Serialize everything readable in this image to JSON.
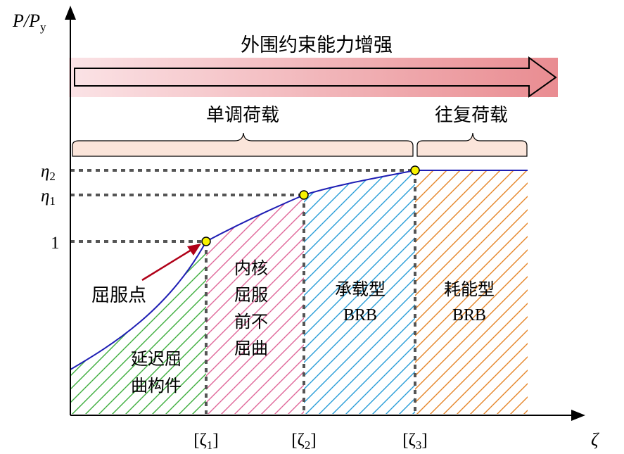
{
  "axes": {
    "y_label_main": "P/P",
    "y_label_sub": "y",
    "x_label": "ζ",
    "y_ticks": [
      {
        "id": "eta2",
        "main": "η",
        "sub": "2"
      },
      {
        "id": "eta1",
        "main": "η",
        "sub": "1"
      },
      {
        "id": "one",
        "main": "1",
        "sub": ""
      }
    ],
    "x_ticks": [
      {
        "id": "z1",
        "main": "[ζ",
        "sub": "1",
        "close": "]"
      },
      {
        "id": "z2",
        "main": "[ζ",
        "sub": "2",
        "close": "]"
      },
      {
        "id": "z3",
        "main": "[ζ",
        "sub": "3",
        "close": "]"
      }
    ]
  },
  "banner": {
    "text": "外围约束能力增强",
    "gradient_start": "#fbe3e6",
    "gradient_end": "#e98c91"
  },
  "braces": {
    "monotonic_label": "单调荷载",
    "cyclic_label": "往复荷载",
    "fill": "#fbe5da"
  },
  "annotations": {
    "yield_point": "屈服点"
  },
  "zones": [
    {
      "id": "delayed",
      "lines": [
        "延迟屈",
        "曲构件"
      ],
      "hatch_color": "#3fae3f"
    },
    {
      "id": "core",
      "lines": [
        "内核",
        "屈服",
        "前不",
        "屈曲"
      ],
      "hatch_color": "#e0689a"
    },
    {
      "id": "bearing",
      "lines": [
        "承载型",
        "BRB"
      ],
      "hatch_color": "#2a9ed8"
    },
    {
      "id": "energy",
      "lines": [
        "耗能型",
        "BRB"
      ],
      "hatch_color": "#e5862a"
    }
  ],
  "colors": {
    "curve": "#1e1eb4",
    "point_fill": "#f7f200",
    "arrow": "#b00018",
    "dash": "#555555"
  }
}
